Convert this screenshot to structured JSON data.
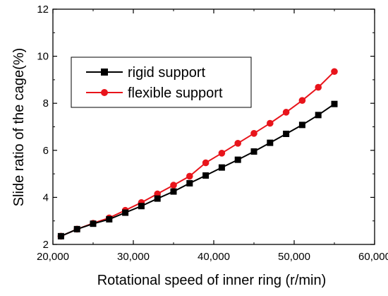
{
  "chart_data": {
    "type": "line",
    "title": "",
    "xlabel": "Rotational speed of inner ring (r/min)",
    "ylabel": "Slide ratio of the cage(%)",
    "xlim": [
      20000,
      60000
    ],
    "ylim": [
      2,
      12
    ],
    "xticks": [
      20000,
      30000,
      40000,
      50000,
      60000
    ],
    "xtick_labels": [
      "20,000",
      "30,000",
      "40,000",
      "50,000",
      "60,000"
    ],
    "yticks": [
      2,
      4,
      6,
      8,
      10,
      12
    ],
    "ytick_labels": [
      "2",
      "4",
      "6",
      "8",
      "10",
      "12"
    ],
    "grid": false,
    "legend_position": "top-left",
    "series": [
      {
        "name": "rigid support",
        "color": "#000000",
        "marker": "square",
        "x": [
          21000,
          23000,
          25000,
          27000,
          29000,
          31000,
          33000,
          35000,
          37000,
          39000,
          41000,
          43000,
          45000,
          47000,
          49000,
          51000,
          53000,
          55000
        ],
        "y": [
          2.35,
          2.65,
          2.88,
          3.07,
          3.35,
          3.63,
          3.95,
          4.25,
          4.6,
          4.93,
          5.27,
          5.6,
          5.95,
          6.32,
          6.7,
          7.08,
          7.5,
          7.97
        ]
      },
      {
        "name": "flexible support",
        "color": "#e8141b",
        "marker": "circle",
        "x": [
          21000,
          23000,
          25000,
          27000,
          29000,
          31000,
          33000,
          35000,
          37000,
          39000,
          41000,
          43000,
          45000,
          47000,
          49000,
          51000,
          53000,
          55000
        ],
        "y": [
          2.35,
          2.65,
          2.9,
          3.13,
          3.45,
          3.78,
          4.15,
          4.52,
          4.9,
          5.47,
          5.88,
          6.3,
          6.72,
          7.15,
          7.62,
          8.12,
          8.68,
          9.35
        ]
      }
    ]
  }
}
